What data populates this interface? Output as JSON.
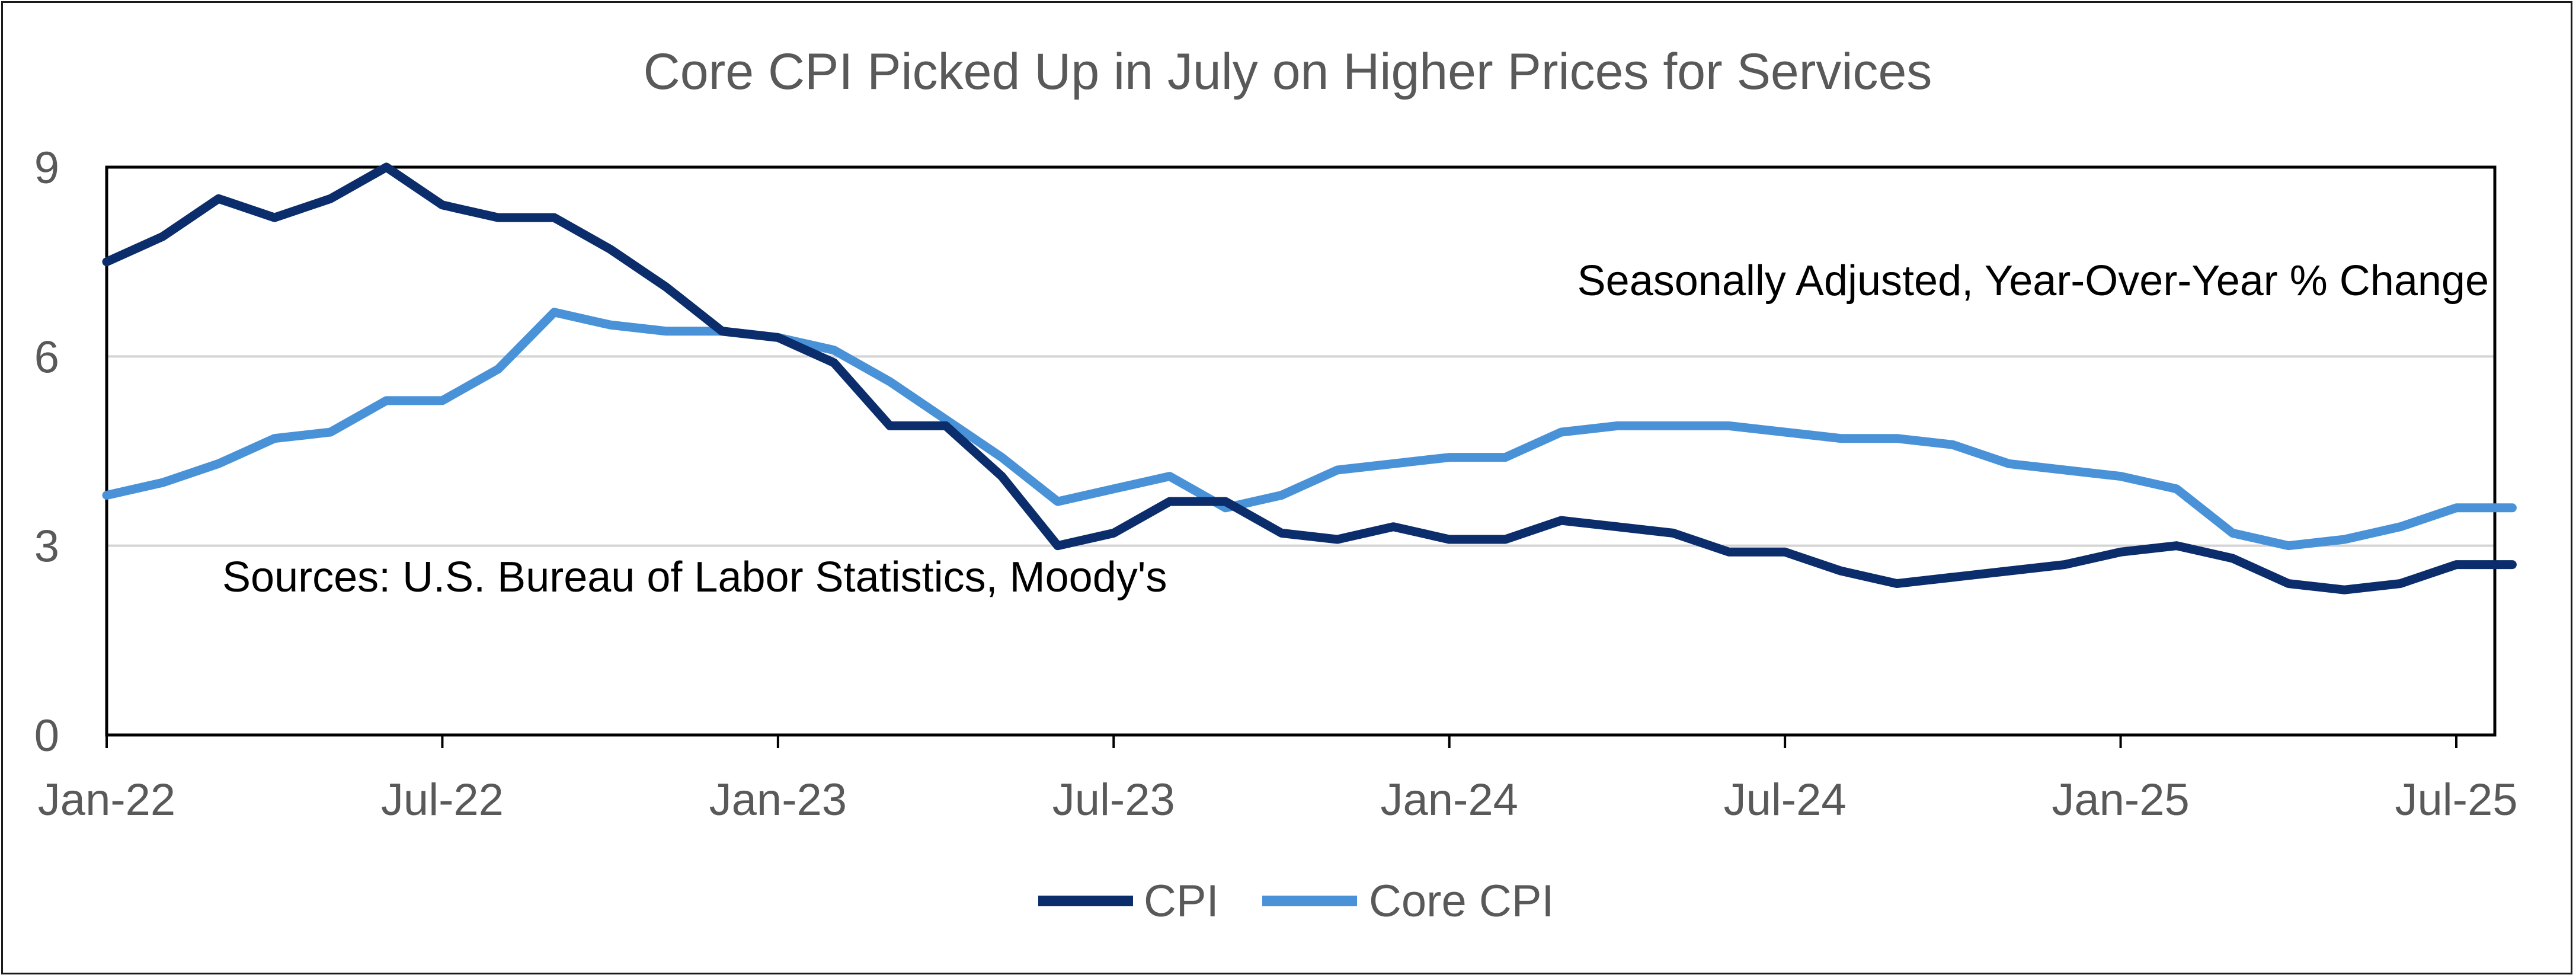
{
  "chart_data": {
    "type": "line",
    "title": "Core CPI Picked Up in July on Higher Prices for Services",
    "subtitle": "Seasonally Adjusted, Year-Over-Year % Change",
    "source": "Sources: U.S. Bureau of Labor Statistics, Moody's",
    "xlabel": "",
    "ylabel": "",
    "ylim": [
      0,
      9
    ],
    "yticks": [
      "0",
      "3",
      "6",
      "9"
    ],
    "ytick_values": [
      0,
      3,
      6,
      9
    ],
    "x_tick_labels": [
      "Jan-22",
      "Jul-22",
      "Jan-23",
      "Jul-23",
      "Jan-24",
      "Jul-24",
      "Jan-25",
      "Jul-25"
    ],
    "x_tick_month_index": [
      0,
      6,
      12,
      18,
      24,
      30,
      36,
      42
    ],
    "x_months": 44,
    "grid": true,
    "legend_position": "bottom",
    "series": [
      {
        "name": "CPI",
        "color": "#0b2d6b",
        "values": [
          7.5,
          7.9,
          8.5,
          8.2,
          8.5,
          9.0,
          8.4,
          8.2,
          8.2,
          7.7,
          7.1,
          6.4,
          6.3,
          5.9,
          4.9,
          4.9,
          4.1,
          3.0,
          3.2,
          3.7,
          3.7,
          3.2,
          3.1,
          3.3,
          3.1,
          3.1,
          3.4,
          3.3,
          3.2,
          2.9,
          2.9,
          2.6,
          2.4,
          2.5,
          2.6,
          2.7,
          2.9,
          3.0,
          2.8,
          2.4,
          2.3,
          2.4,
          2.7,
          2.7
        ]
      },
      {
        "name": "Core CPI",
        "color": "#4a92d8",
        "values": [
          3.8,
          4.0,
          4.3,
          4.7,
          4.8,
          5.3,
          5.3,
          5.8,
          6.7,
          6.5,
          6.4,
          6.4,
          6.3,
          6.1,
          5.6,
          5.0,
          4.4,
          3.7,
          3.9,
          4.1,
          3.6,
          3.8,
          4.2,
          4.3,
          4.4,
          4.4,
          4.8,
          4.9,
          4.9,
          4.9,
          4.8,
          4.7,
          4.7,
          4.6,
          4.3,
          4.2,
          4.1,
          3.9,
          3.2,
          3.0,
          3.1,
          3.3,
          3.6,
          3.6
        ]
      }
    ]
  }
}
